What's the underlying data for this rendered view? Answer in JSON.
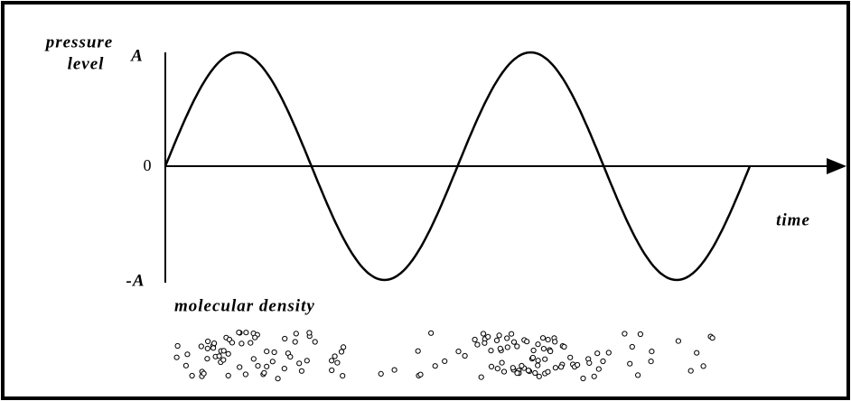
{
  "axes": {
    "y_label": [
      "pressure",
      "level"
    ],
    "y_ticks": [
      "A",
      "0",
      "-A"
    ],
    "x_label": "time"
  },
  "density_label": "molecular density"
}
